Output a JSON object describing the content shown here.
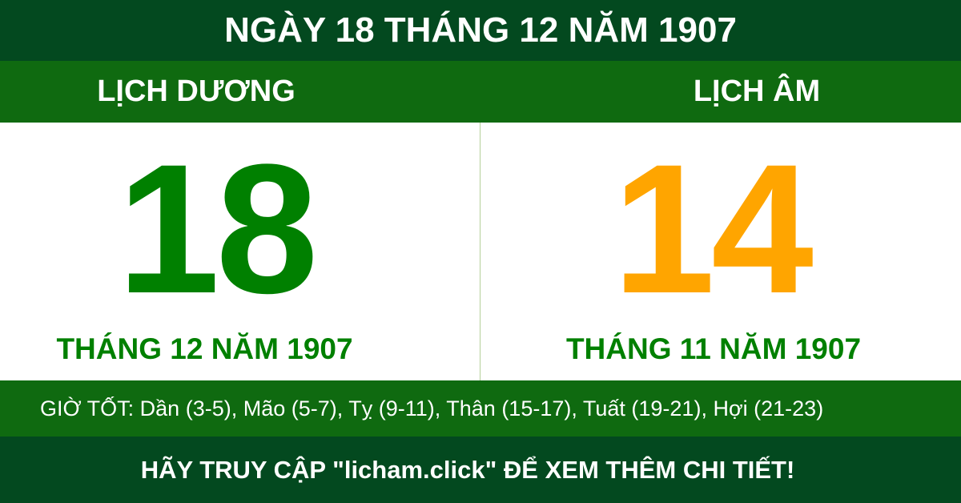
{
  "header": {
    "title": "NGÀY 18 THÁNG 12 NĂM 1907"
  },
  "solar": {
    "label": "LỊCH DƯƠNG",
    "day": "18",
    "month_year": "THÁNG 12 NĂM 1907"
  },
  "lunar": {
    "label": "LỊCH ÂM",
    "day": "14",
    "month_year": "THÁNG 11 NĂM 1907"
  },
  "good_hours": "GIỜ TỐT: Dần (3-5), Mão (5-7), Tỵ (9-11), Thân (15-17), Tuất (19-21), Hợi (21-23)",
  "footer": {
    "cta": "HÃY TRUY CẬP \"licham.click\" ĐỂ XEM THÊM CHI TIẾT!"
  },
  "colors": {
    "dark_green": "#03491f",
    "band_green": "#0f6a10",
    "solar_digit": "#008000",
    "lunar_digit": "#ffa500"
  }
}
